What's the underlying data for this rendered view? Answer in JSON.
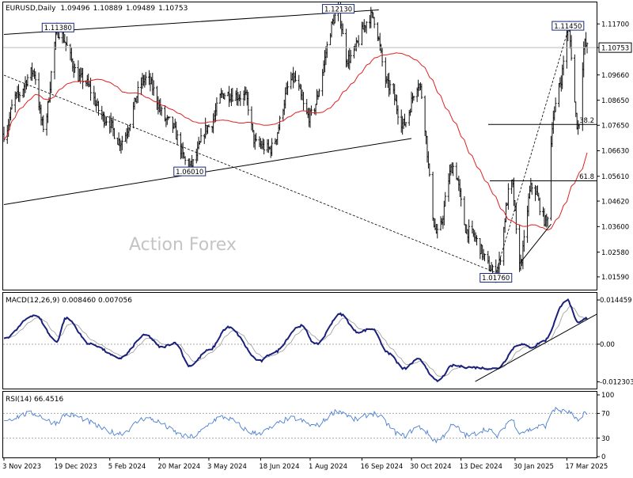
{
  "chart_data": {
    "type": "ohlc",
    "symbol": "EURUSD",
    "timeframe": "Daily",
    "header_ohlc": [
      "1.09496",
      "1.10889",
      "1.09489",
      "1.10753"
    ],
    "watermark": "Action Forex",
    "price": {
      "ylim": [
        1.0108,
        1.1256
      ],
      "yticks": [
        "1.11700",
        "1.10753",
        "1.09660",
        "1.08650",
        "1.07650",
        "1.06630",
        "1.05610",
        "1.04620",
        "1.03600",
        "1.02580",
        "1.01590"
      ],
      "current_price": 1.10753,
      "current_price_label": "1.10753",
      "annotations": [
        {
          "label": "1.11380",
          "x": "2023-12-21",
          "price": 1.1138
        },
        {
          "label": "1.06010",
          "x": "2024-04-16",
          "price": 1.0601
        },
        {
          "label": "1.12130",
          "x": "2024-08-26",
          "price": 1.1213
        },
        {
          "label": "1.01760",
          "x": "2025-01-13",
          "price": 1.0176
        },
        {
          "label": "1.11450",
          "x": "2025-03-18",
          "price": 1.1145
        }
      ],
      "fib_levels": [
        {
          "label": "38.2",
          "price": 1.0768
        },
        {
          "label": "61.8",
          "price": 1.0543
        }
      ],
      "moving_average_color": "#e02020",
      "anchors": [
        [
          "2023-11-03",
          1.073
        ],
        [
          "2023-11-14",
          1.088
        ],
        [
          "2023-11-29",
          1.098
        ],
        [
          "2023-12-08",
          1.076
        ],
        [
          "2023-12-21",
          1.1138
        ],
        [
          "2024-01-11",
          1.095
        ],
        [
          "2024-02-02",
          1.079
        ],
        [
          "2024-02-14",
          1.07
        ],
        [
          "2024-03-08",
          1.095
        ],
        [
          "2024-03-28",
          1.078
        ],
        [
          "2024-04-16",
          1.0601
        ],
        [
          "2024-05-03",
          1.076
        ],
        [
          "2024-05-16",
          1.089
        ],
        [
          "2024-06-04",
          1.088
        ],
        [
          "2024-06-14",
          1.069
        ],
        [
          "2024-06-26",
          1.067
        ],
        [
          "2024-07-17",
          1.095
        ],
        [
          "2024-07-31",
          1.08
        ],
        [
          "2024-08-26",
          1.1213
        ],
        [
          "2024-09-03",
          1.103
        ],
        [
          "2024-09-25",
          1.12
        ],
        [
          "2024-10-10",
          1.092
        ],
        [
          "2024-10-23",
          1.077
        ],
        [
          "2024-11-05",
          1.093
        ],
        [
          "2024-11-22",
          1.033
        ],
        [
          "2024-12-06",
          1.06
        ],
        [
          "2024-12-19",
          1.034
        ],
        [
          "2025-01-13",
          1.0176
        ],
        [
          "2025-01-27",
          1.053
        ],
        [
          "2025-02-03",
          1.021
        ],
        [
          "2025-02-14",
          1.052
        ],
        [
          "2025-02-27",
          1.038
        ],
        [
          "2025-03-05",
          1.08
        ],
        [
          "2025-03-11",
          1.094
        ],
        [
          "2025-03-18",
          1.1145
        ],
        [
          "2025-03-27",
          1.076
        ],
        [
          "2025-04-02",
          1.109
        ],
        [
          "2025-04-04",
          1.1075
        ]
      ],
      "trendlines": [
        {
          "style": "solid",
          "points": [
            [
              "2023-11-03",
              1.1128
            ],
            [
              "2024-10-01",
              1.1226
            ]
          ]
        },
        {
          "style": "solid",
          "points": [
            [
              "2023-11-03",
              1.0448
            ],
            [
              "2024-10-30",
              1.0712
            ]
          ]
        },
        {
          "style": "dashed",
          "points": [
            [
              "2023-11-03",
              1.0965
            ],
            [
              "2025-01-13",
              1.0176
            ]
          ]
        },
        {
          "style": "dashed",
          "points": [
            [
              "2025-01-13",
              1.0176
            ],
            [
              "2025-03-18",
              1.1145
            ]
          ]
        },
        {
          "style": "solid",
          "points": [
            [
              "2025-02-03",
              1.0212
            ],
            [
              "2025-03-03",
              1.037
            ]
          ]
        }
      ]
    },
    "macd": {
      "label": "MACD(12,26,9) 0.008460 0.007056",
      "ylim": [
        -0.0145,
        0.0168
      ],
      "yticks": [
        "0.014459",
        "0.00",
        "-0.012303"
      ],
      "anchors": [
        [
          "2023-11-03",
          0.002
        ],
        [
          "2023-11-30",
          0.0095
        ],
        [
          "2023-12-20",
          0.001
        ],
        [
          "2023-12-28",
          0.0085
        ],
        [
          "2024-01-19",
          0.0
        ],
        [
          "2024-02-14",
          -0.0045
        ],
        [
          "2024-03-08",
          0.003
        ],
        [
          "2024-03-22",
          -0.001
        ],
        [
          "2024-04-03",
          0.0005
        ],
        [
          "2024-04-16",
          -0.007
        ],
        [
          "2024-05-03",
          -0.002
        ],
        [
          "2024-05-20",
          0.0055
        ],
        [
          "2024-06-18",
          -0.0055
        ],
        [
          "2024-06-28",
          -0.003
        ],
        [
          "2024-07-24",
          0.006
        ],
        [
          "2024-08-06",
          0.0
        ],
        [
          "2024-08-28",
          0.0098
        ],
        [
          "2024-09-12",
          0.004
        ],
        [
          "2024-09-25",
          0.005
        ],
        [
          "2024-10-10",
          -0.003
        ],
        [
          "2024-10-23",
          -0.008
        ],
        [
          "2024-11-05",
          -0.005
        ],
        [
          "2024-11-22",
          -0.012
        ],
        [
          "2024-12-06",
          -0.007
        ],
        [
          "2024-12-18",
          -0.0075
        ],
        [
          "2025-01-13",
          -0.008
        ],
        [
          "2025-02-03",
          0.0
        ],
        [
          "2025-02-14",
          -0.001
        ],
        [
          "2025-02-24",
          0.001
        ],
        [
          "2025-03-17",
          0.0145
        ],
        [
          "2025-03-27",
          0.007
        ],
        [
          "2025-04-04",
          0.00846
        ]
      ],
      "trendline": [
        [
          "2024-12-20",
          -0.0122
        ],
        [
          "2025-04-04",
          0.0098
        ]
      ]
    },
    "rsi": {
      "label": "RSI(14) 66.4516",
      "ylim": [
        0,
        100
      ],
      "yticks": [
        "100",
        "70",
        "30",
        "0"
      ],
      "levels": [
        70,
        30
      ],
      "line_color": "#4a7fd0",
      "anchors": [
        [
          "2023-11-03",
          60
        ],
        [
          "2023-11-28",
          70
        ],
        [
          "2023-12-19",
          55
        ],
        [
          "2023-12-28",
          68
        ],
        [
          "2024-02-14",
          38
        ],
        [
          "2024-03-08",
          62
        ],
        [
          "2024-04-16",
          32
        ],
        [
          "2024-05-15",
          64
        ],
        [
          "2024-06-14",
          38
        ],
        [
          "2024-07-17",
          62
        ],
        [
          "2024-08-05",
          50
        ],
        [
          "2024-08-26",
          74
        ],
        [
          "2024-09-11",
          60
        ],
        [
          "2024-09-25",
          70
        ],
        [
          "2024-10-23",
          34
        ],
        [
          "2024-11-05",
          48
        ],
        [
          "2024-11-22",
          26
        ],
        [
          "2024-12-06",
          50
        ],
        [
          "2024-12-19",
          34
        ],
        [
          "2025-01-06",
          45
        ],
        [
          "2025-01-13",
          33
        ],
        [
          "2025-01-27",
          60
        ],
        [
          "2025-02-03",
          40
        ],
        [
          "2025-02-26",
          50
        ],
        [
          "2025-03-05",
          76
        ],
        [
          "2025-03-18",
          72
        ],
        [
          "2025-03-27",
          58
        ],
        [
          "2025-04-02",
          72
        ],
        [
          "2025-04-04",
          66
        ]
      ]
    },
    "x_axis": {
      "start": "2023-11-03",
      "end": "2025-04-04",
      "ticks": [
        {
          "label": "3 Nov 2023",
          "date": "2023-11-03"
        },
        {
          "label": "19 Dec 2023",
          "date": "2023-12-19"
        },
        {
          "label": "5 Feb 2024",
          "date": "2024-02-05"
        },
        {
          "label": "20 Mar 2024",
          "date": "2024-03-20"
        },
        {
          "label": "3 May 2024",
          "date": "2024-05-03"
        },
        {
          "label": "18 Jun 2024",
          "date": "2024-06-18"
        },
        {
          "label": "1 Aug 2024",
          "date": "2024-08-01"
        },
        {
          "label": "16 Sep 2024",
          "date": "2024-09-16"
        },
        {
          "label": "30 Oct 2024",
          "date": "2024-10-30"
        },
        {
          "label": "13 Dec 2024",
          "date": "2024-12-13"
        },
        {
          "label": "30 Jan 2025",
          "date": "2025-01-30"
        },
        {
          "label": "17 Mar 2025",
          "date": "2025-03-17"
        }
      ]
    }
  }
}
